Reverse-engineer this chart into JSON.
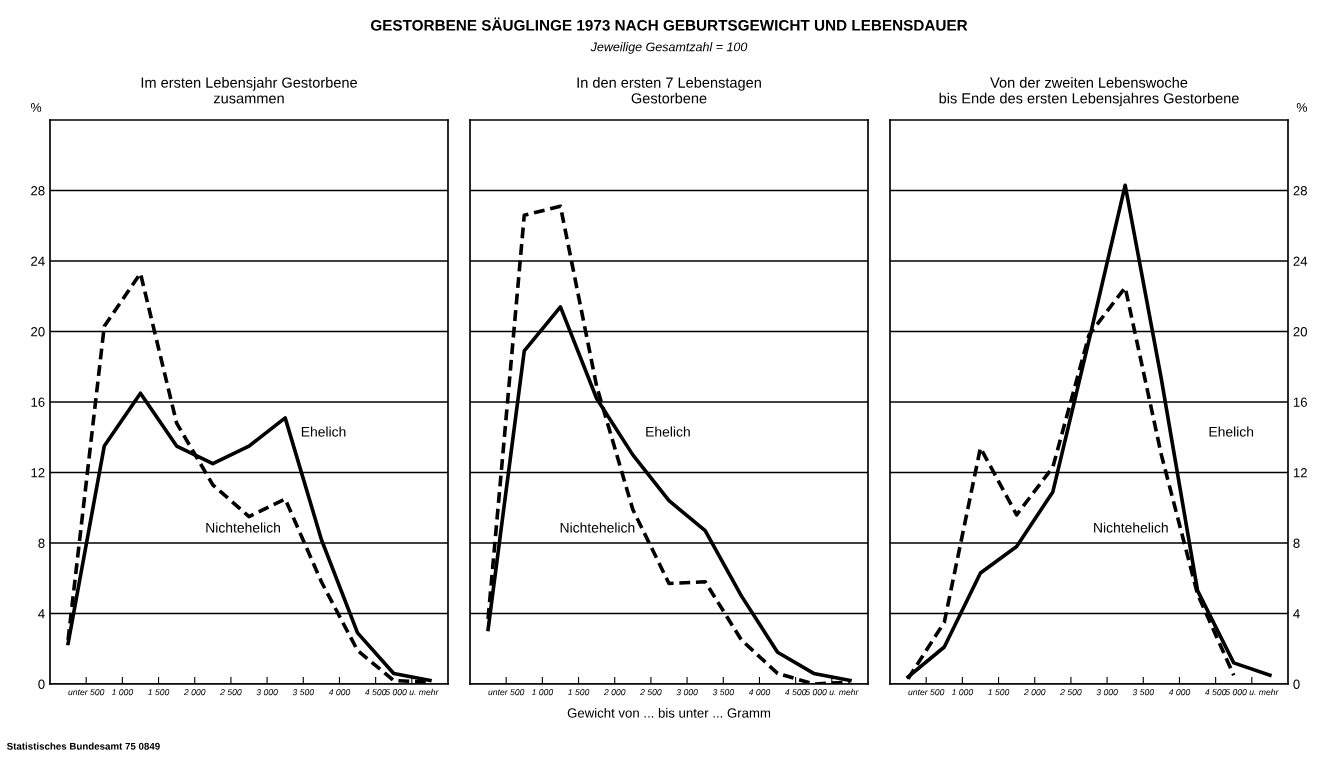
{
  "chart_data": [
    {
      "type": "line",
      "title": "Im ersten Lebensjahr Gestorbene\nzusammen",
      "ylabel": "%",
      "x": [
        250,
        750,
        1250,
        1750,
        2250,
        2750,
        3250,
        3750,
        4250,
        4750,
        5250
      ],
      "xlim": [
        0,
        5500
      ],
      "xticks": [
        {
          "value": 500,
          "label": "unter 500"
        },
        {
          "value": 1000,
          "label": "1 000"
        },
        {
          "value": 1500,
          "label": "1 500"
        },
        {
          "value": 2000,
          "label": "2 000"
        },
        {
          "value": 2500,
          "label": "2 500"
        },
        {
          "value": 3000,
          "label": "3 000"
        },
        {
          "value": 3500,
          "label": "3 500"
        },
        {
          "value": 4000,
          "label": "4 000"
        },
        {
          "value": 4500,
          "label": "4 500"
        },
        {
          "value": 5000,
          "label": "5 000 u. mehr"
        }
      ],
      "ylim": [
        0,
        32
      ],
      "yticks": [
        0,
        4,
        8,
        12,
        16,
        20,
        24,
        28
      ],
      "grid": "y",
      "marker": "none",
      "annotations": [
        "Statistisches Bundesamt 75 0849"
      ],
      "series": [
        {
          "name": "Ehelich",
          "color": "#000000",
          "line_style": "solid",
          "values": [
            2.3,
            13.5,
            16.5,
            13.5,
            12.5,
            13.5,
            15.1,
            8.2,
            2.9,
            0.6,
            0.2
          ]
        },
        {
          "name": "Nichtehelich",
          "color": "#000000",
          "line_style": "dashed",
          "values": [
            2.5,
            20.3,
            23.3,
            14.8,
            11.3,
            9.5,
            10.5,
            5.8,
            1.9,
            0.2,
            0.1
          ]
        }
      ]
    },
    {
      "type": "line",
      "title": "In den ersten 7 Lebenstagen\nGestorbene",
      "xlabel": "Gewicht von ... bis unter ... Gramm",
      "x": [
        250,
        750,
        1250,
        1750,
        2250,
        2750,
        3250,
        3750,
        4250,
        4750,
        5250
      ],
      "xlim": [
        0,
        5500
      ],
      "xticks": [
        {
          "value": 500,
          "label": "unter 500"
        },
        {
          "value": 1000,
          "label": "1 000"
        },
        {
          "value": 1500,
          "label": "1 500"
        },
        {
          "value": 2000,
          "label": "2 000"
        },
        {
          "value": 2500,
          "label": "2 500"
        },
        {
          "value": 3000,
          "label": "3 000"
        },
        {
          "value": 3500,
          "label": "3 500"
        },
        {
          "value": 4000,
          "label": "4 000"
        },
        {
          "value": 4500,
          "label": "4 500"
        },
        {
          "value": 5000,
          "label": "5 000 u. mehr"
        }
      ],
      "ylim": [
        0,
        32
      ],
      "yticks": [
        0,
        4,
        8,
        12,
        16,
        20,
        24,
        28
      ],
      "grid": "y",
      "marker": "none",
      "tick_labels": "x",
      "annotations": [
        "GESTORBENE SÄUGLINGE 1973 NACH GEBURTSGEWICHT UND LEBENSDAUER",
        "Jeweilige Gesamtzahl = 100"
      ],
      "series": [
        {
          "name": "Ehelich",
          "color": "#000000",
          "line_style": "solid",
          "values": [
            3.1,
            18.9,
            21.4,
            16.2,
            13.0,
            10.4,
            8.7,
            5.0,
            1.8,
            0.6,
            0.2
          ]
        },
        {
          "name": "Nichtehelich",
          "color": "#000000",
          "line_style": "dashed",
          "values": [
            3.7,
            26.6,
            27.1,
            16.9,
            9.9,
            5.7,
            5.8,
            2.5,
            0.6,
            0.0,
            0.1
          ]
        }
      ]
    },
    {
      "type": "line",
      "title": "Von der zweiten Lebenswoche\nbis Ende des ersten Lebensjahres Gestorbene",
      "ylabel": "%",
      "x": [
        250,
        750,
        1250,
        1750,
        2250,
        2750,
        3250,
        3750,
        4250,
        4750,
        5250
      ],
      "xlim": [
        0,
        5500
      ],
      "xticks": [
        {
          "value": 500,
          "label": "unter 500"
        },
        {
          "value": 1000,
          "label": "1 000"
        },
        {
          "value": 1500,
          "label": "1 500"
        },
        {
          "value": 2000,
          "label": "2 000"
        },
        {
          "value": 2500,
          "label": "2 500"
        },
        {
          "value": 3000,
          "label": "3 000"
        },
        {
          "value": 3500,
          "label": "3 500"
        },
        {
          "value": 4000,
          "label": "4 000"
        },
        {
          "value": 4500,
          "label": "4 500"
        },
        {
          "value": 5000,
          "label": "5 000 u. mehr"
        }
      ],
      "ylim": [
        0,
        32
      ],
      "yticks": [
        0,
        4,
        8,
        12,
        16,
        20,
        24,
        28
      ],
      "grid": "y",
      "marker": "none",
      "series": [
        {
          "name": "Ehelich",
          "color": "#000000",
          "line_style": "solid",
          "values": [
            0.4,
            2.1,
            6.3,
            7.8,
            10.9,
            19.5,
            28.3,
            17.3,
            5.3,
            1.2,
            0.5
          ]
        },
        {
          "name": "Nichtehelich",
          "color": "#000000",
          "line_style": "dashed",
          "values": [
            0.3,
            3.5,
            13.4,
            9.6,
            12.3,
            19.8,
            22.5,
            13.0,
            5.1,
            0.5,
            null
          ]
        }
      ]
    }
  ]
}
